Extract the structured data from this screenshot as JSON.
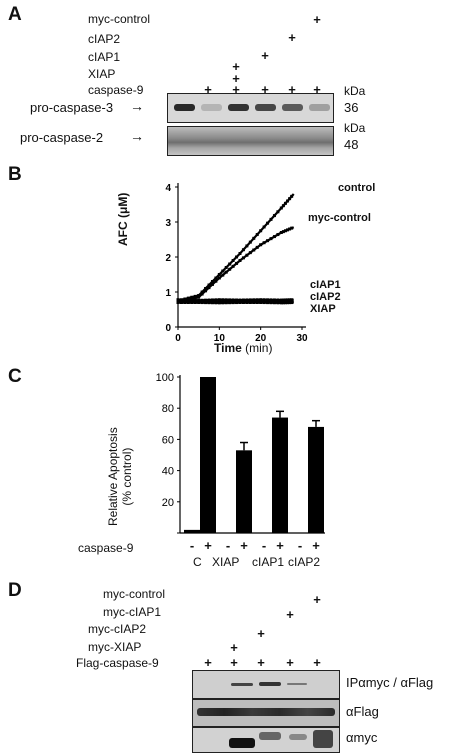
{
  "panelA": {
    "letter": "A",
    "conditions": [
      "myc-control",
      "cIAP2",
      "cIAP1",
      "XIAP",
      "caspase-9"
    ],
    "blots": [
      {
        "label": "pro-caspase-3",
        "unit": "kDa",
        "mw": "36"
      },
      {
        "label": "pro-caspase-2",
        "unit": "kDa",
        "mw": "48"
      }
    ],
    "plus": "+",
    "band_intensity_caspase3": [
      0.95,
      0.25,
      0.9,
      0.8,
      0.7,
      0.35
    ]
  },
  "panelB": {
    "letter": "B",
    "ylabel": "AFC (μM)",
    "xlabel_bold": "Time",
    "xlabel_unit": "(min)",
    "series_labels": [
      "control",
      "myc-control",
      "cIAP1",
      "cIAP2",
      "XIAP"
    ]
  },
  "panelC": {
    "letter": "C",
    "ylabel_line1": "Relative Apoptosis",
    "ylabel_line2": "(% control)",
    "row_label": "caspase-9",
    "group_labels": [
      "C",
      "XIAP",
      "cIAP1",
      "cIAP2"
    ],
    "minus": "-",
    "plus": "+"
  },
  "panelD": {
    "letter": "D",
    "conditions": [
      "myc-control",
      "myc-cIAP1",
      "myc-cIAP2",
      "myc-XIAP",
      "Flag-caspase-9"
    ],
    "blot_labels": [
      "IPαmyc / αFlag",
      "αFlag",
      "αmyc"
    ],
    "plus": "+"
  },
  "chart_data": [
    {
      "type": "line",
      "panel": "B",
      "xlabel": "Time (min)",
      "ylabel": "AFC (μM)",
      "xlim": [
        0,
        30
      ],
      "ylim": [
        0,
        4
      ],
      "xticks": [
        0,
        10,
        20,
        30
      ],
      "yticks": [
        0,
        1,
        2,
        3,
        4
      ],
      "series": [
        {
          "name": "control",
          "x": [
            0,
            5,
            10,
            15,
            20,
            25,
            28
          ],
          "y": [
            0.75,
            0.9,
            1.5,
            2.1,
            2.75,
            3.4,
            3.8
          ]
        },
        {
          "name": "myc-control",
          "x": [
            0,
            5,
            10,
            15,
            20,
            25,
            28
          ],
          "y": [
            0.72,
            0.85,
            1.4,
            1.9,
            2.35,
            2.7,
            2.85
          ]
        },
        {
          "name": "cIAP1",
          "x": [
            0,
            5,
            10,
            15,
            20,
            25,
            28
          ],
          "y": [
            0.78,
            0.76,
            0.78,
            0.77,
            0.78,
            0.77,
            0.78
          ]
        },
        {
          "name": "cIAP2",
          "x": [
            0,
            5,
            10,
            15,
            20,
            25,
            28
          ],
          "y": [
            0.72,
            0.73,
            0.72,
            0.73,
            0.72,
            0.73,
            0.72
          ]
        },
        {
          "name": "XIAP",
          "x": [
            0,
            5,
            10,
            15,
            20,
            25,
            28
          ],
          "y": [
            0.7,
            0.7,
            0.69,
            0.7,
            0.7,
            0.69,
            0.7
          ]
        }
      ]
    },
    {
      "type": "bar",
      "panel": "C",
      "ylabel": "Relative Apoptosis (% control)",
      "ylim": [
        0,
        100
      ],
      "yticks": [
        0,
        20,
        40,
        60,
        80,
        100
      ],
      "categories": [
        "C -",
        "C +",
        "XIAP -",
        "XIAP +",
        "cIAP1 -",
        "cIAP1 +",
        "cIAP2 -",
        "cIAP2 +"
      ],
      "values": [
        2,
        100,
        0,
        53,
        0,
        74,
        0,
        68
      ],
      "errors": [
        0,
        0,
        0,
        5,
        0,
        4,
        0,
        4
      ]
    }
  ]
}
